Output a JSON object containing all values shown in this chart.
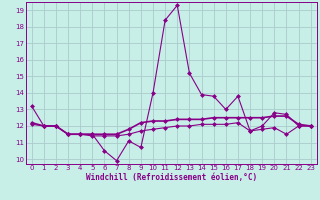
{
  "xlabel": "Windchill (Refroidissement éolien,°C)",
  "background_color": "#c8eee8",
  "line_color": "#880088",
  "grid_color": "#aacccc",
  "x_values": [
    0,
    1,
    2,
    3,
    4,
    5,
    6,
    7,
    8,
    9,
    10,
    11,
    12,
    13,
    14,
    15,
    16,
    17,
    18,
    19,
    20,
    21,
    22,
    23
  ],
  "series1": [
    13.2,
    12.0,
    12.0,
    11.5,
    11.5,
    11.5,
    10.5,
    9.9,
    11.1,
    10.7,
    14.0,
    18.4,
    19.3,
    15.2,
    13.9,
    13.8,
    13.0,
    13.8,
    11.7,
    12.0,
    12.8,
    12.7,
    12.0,
    12.0
  ],
  "series2": [
    12.2,
    12.0,
    12.0,
    11.5,
    11.5,
    11.5,
    11.5,
    11.5,
    11.8,
    12.2,
    12.3,
    12.3,
    12.4,
    12.4,
    12.4,
    12.5,
    12.5,
    12.5,
    12.5,
    12.5,
    12.6,
    12.6,
    12.1,
    12.0
  ],
  "series3": [
    12.1,
    12.0,
    12.0,
    11.5,
    11.5,
    11.4,
    11.4,
    11.4,
    11.5,
    11.7,
    11.8,
    11.9,
    12.0,
    12.0,
    12.1,
    12.1,
    12.1,
    12.2,
    11.7,
    11.8,
    11.9,
    11.5,
    12.0,
    12.0
  ],
  "ylim": [
    9.7,
    19.5
  ],
  "yticks": [
    10,
    11,
    12,
    13,
    14,
    15,
    16,
    17,
    18,
    19
  ],
  "xticks": [
    0,
    1,
    2,
    3,
    4,
    5,
    6,
    7,
    8,
    9,
    10,
    11,
    12,
    13,
    14,
    15,
    16,
    17,
    18,
    19,
    20,
    21,
    22,
    23
  ]
}
